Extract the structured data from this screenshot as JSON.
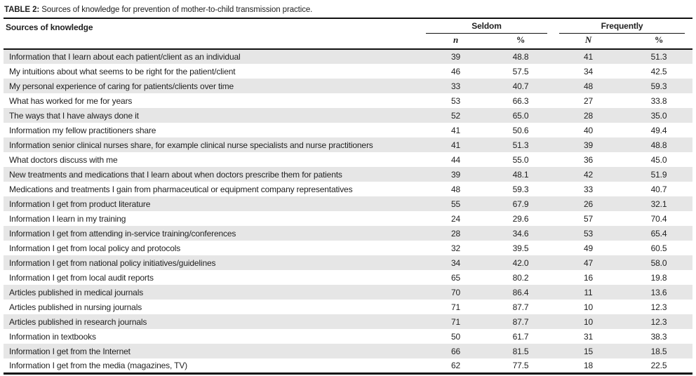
{
  "caption": {
    "label": "TABLE 2:",
    "text": " Sources of knowledge for prevention of mother-to-child transmission practice."
  },
  "table": {
    "row_header": "Sources of knowledge",
    "groups": [
      {
        "label": "Seldom",
        "cols": [
          "n",
          "%"
        ]
      },
      {
        "label": "Frequently",
        "cols": [
          "N",
          "%"
        ]
      }
    ],
    "rows": [
      {
        "label": "Information that I learn about each patient/client as an individual",
        "values": [
          "39",
          "48.8",
          "41",
          "51.3"
        ]
      },
      {
        "label": "My intuitions about what seems to be right for the patient/client",
        "values": [
          "46",
          "57.5",
          "34",
          "42.5"
        ]
      },
      {
        "label": "My personal experience of caring for patients/clients over time",
        "values": [
          "33",
          "40.7",
          "48",
          "59.3"
        ]
      },
      {
        "label": "What has worked for me for years",
        "values": [
          "53",
          "66.3",
          "27",
          "33.8"
        ]
      },
      {
        "label": "The ways that I have always done it",
        "values": [
          "52",
          "65.0",
          "28",
          "35.0"
        ]
      },
      {
        "label": "Information my fellow practitioners share",
        "values": [
          "41",
          "50.6",
          "40",
          "49.4"
        ]
      },
      {
        "label": "Information senior clinical nurses share, for example clinical nurse specialists and nurse practitioners",
        "values": [
          "41",
          "51.3",
          "39",
          "48.8"
        ]
      },
      {
        "label": "What doctors discuss with me",
        "values": [
          "44",
          "55.0",
          "36",
          "45.0"
        ]
      },
      {
        "label": "New treatments and medications that I learn about when doctors prescribe them for patients",
        "values": [
          "39",
          "48.1",
          "42",
          "51.9"
        ]
      },
      {
        "label": "Medications and treatments I gain from pharmaceutical or equipment company representatives",
        "values": [
          "48",
          "59.3",
          "33",
          "40.7"
        ]
      },
      {
        "label": "Information I get from product literature",
        "values": [
          "55",
          "67.9",
          "26",
          "32.1"
        ]
      },
      {
        "label": "Information I learn in my training",
        "values": [
          "24",
          "29.6",
          "57",
          "70.4"
        ]
      },
      {
        "label": "Information I get from attending in-service training/conferences",
        "values": [
          "28",
          "34.6",
          "53",
          "65.4"
        ]
      },
      {
        "label": "Information I get from local policy and protocols",
        "values": [
          "32",
          "39.5",
          "49",
          "60.5"
        ]
      },
      {
        "label": "Information I get from national policy initiatives/guidelines",
        "values": [
          "34",
          "42.0",
          "47",
          "58.0"
        ]
      },
      {
        "label": "Information I get from local audit reports",
        "values": [
          "65",
          "80.2",
          "16",
          "19.8"
        ]
      },
      {
        "label": "Articles published in medical journals",
        "values": [
          "70",
          "86.4",
          "11",
          "13.6"
        ]
      },
      {
        "label": "Articles published in nursing journals",
        "values": [
          "71",
          "87.7",
          "10",
          "12.3"
        ]
      },
      {
        "label": "Articles published in research journals",
        "values": [
          "71",
          "87.7",
          "10",
          "12.3"
        ]
      },
      {
        "label": "Information in textbooks",
        "values": [
          "50",
          "61.7",
          "31",
          "38.3"
        ]
      },
      {
        "label": "Information I get from the Internet",
        "values": [
          "66",
          "81.5",
          "15",
          "18.5"
        ]
      },
      {
        "label": "Information I get from the media (magazines, TV)",
        "values": [
          "62",
          "77.5",
          "18",
          "22.5"
        ]
      }
    ]
  },
  "colors": {
    "stripe": "#e6e6e6",
    "rule": "#111111",
    "text": "#1f1f1f"
  }
}
